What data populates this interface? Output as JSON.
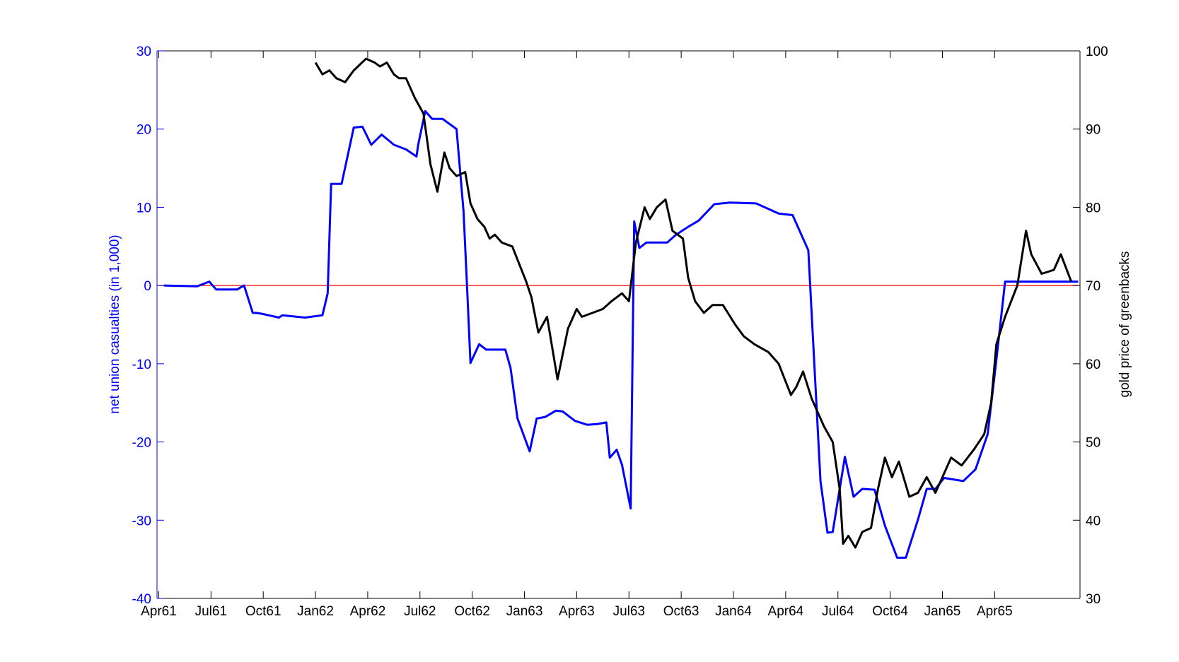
{
  "chart_data": {
    "type": "line",
    "x_tick_labels": [
      "Apr61",
      "Jul61",
      "Oct61",
      "Jan62",
      "Apr62",
      "Jul62",
      "Oct62",
      "Jan63",
      "Apr63",
      "Jul63",
      "Oct63",
      "Jan64",
      "Apr64",
      "Jul64",
      "Oct64",
      "Jan65",
      "Apr65"
    ],
    "x_tick_index": [
      0,
      3,
      6,
      9,
      12,
      15,
      18,
      21,
      24,
      27,
      30,
      33,
      36,
      39,
      42,
      45,
      48
    ],
    "xlim_index": [
      -0.1,
      52.9
    ],
    "y_left": {
      "label": "net union casualties (in 1,000)",
      "color": "#0000ff",
      "lim": [
        -40,
        30
      ],
      "ticks": [
        "30",
        "20",
        "10",
        "0",
        "-10",
        "-20",
        "-30",
        "-40"
      ]
    },
    "y_right": {
      "label": "gold price of greenbacks",
      "color": "#000000",
      "lim": [
        30,
        100
      ],
      "ticks": [
        "100",
        "90",
        "80",
        "70",
        "60",
        "50",
        "40",
        "30"
      ]
    },
    "zero_line": {
      "value": 0,
      "color": "#ff0000"
    },
    "series": [
      {
        "axis": "left",
        "color": "#0000ff",
        "x": [
          0.3,
          2.2,
          2.9,
          3.3,
          3.6,
          4.5,
          4.9,
          5.4,
          5.6,
          5.9,
          6.9,
          7.1,
          7.5,
          8.4,
          9.4,
          9.7,
          9.9,
          10.2,
          10.5,
          11.2,
          11.7,
          12.2,
          12.8,
          13.5,
          14.2,
          14.8,
          14.9,
          15.3,
          15.7,
          16.3,
          17.1,
          17.5,
          17.7,
          17.9,
          18.4,
          18.8,
          19.5,
          19.9,
          20.2,
          20.6,
          21.3,
          21.7,
          22.2,
          22.8,
          23.2,
          23.9,
          24.6,
          25.2,
          25.7,
          25.9,
          26.3,
          26.6,
          27.1,
          27.3,
          27.6,
          28.0,
          28.6,
          29.2,
          29.7,
          30.4,
          31.0,
          31.9,
          32.8,
          34.3,
          35.6,
          36.4,
          37.3,
          38.0,
          38.4,
          38.7,
          39.4,
          39.9,
          40.4,
          41.1,
          41.7,
          42.4,
          42.9,
          43.6,
          44.1,
          44.6,
          45.1,
          46.2,
          46.9,
          47.6,
          48.1,
          48.6,
          49.1,
          52.8
        ],
        "y": [
          0.0,
          -0.1,
          0.5,
          -0.5,
          -0.5,
          -0.5,
          0.0,
          -3.5,
          -3.5,
          -3.6,
          -4.1,
          -3.8,
          -3.9,
          -4.1,
          -3.8,
          -1.0,
          13.0,
          13.0,
          13.0,
          20.2,
          20.3,
          18.0,
          19.3,
          18.0,
          17.4,
          16.5,
          18.0,
          22.3,
          21.3,
          21.3,
          20.0,
          9.5,
          0.0,
          -9.9,
          -7.5,
          -8.2,
          -8.2,
          -8.2,
          -10.5,
          -17.0,
          -21.2,
          -17.0,
          -16.8,
          -16.0,
          -16.1,
          -17.3,
          -17.8,
          -17.7,
          -17.5,
          -22.0,
          -21.0,
          -22.9,
          -28.5,
          8.2,
          4.8,
          5.5,
          5.5,
          5.5,
          6.5,
          7.5,
          8.3,
          10.4,
          10.6,
          10.5,
          9.2,
          9.0,
          4.5,
          -25.0,
          -31.6,
          -31.5,
          -21.9,
          -27.0,
          -26.0,
          -26.1,
          -30.7,
          -34.8,
          -34.8,
          -29.9,
          -26.0,
          -26.0,
          -24.6,
          -25.0,
          -23.5,
          -19.0,
          -9.5,
          0.5,
          0.5,
          0.5
        ]
      },
      {
        "axis": "right",
        "color": "#000000",
        "x": [
          9.0,
          9.4,
          9.8,
          10.2,
          10.7,
          11.2,
          11.9,
          12.4,
          12.7,
          13.1,
          13.5,
          13.8,
          14.2,
          14.5,
          14.7,
          15.2,
          15.6,
          16.0,
          16.4,
          16.7,
          17.1,
          17.6,
          17.9,
          18.3,
          18.7,
          19.0,
          19.3,
          19.7,
          20.3,
          21.1,
          21.4,
          21.8,
          22.3,
          22.9,
          23.5,
          24.0,
          24.3,
          24.9,
          25.5,
          26.0,
          26.6,
          27.0,
          27.4,
          27.9,
          28.2,
          28.6,
          29.1,
          29.5,
          30.1,
          30.4,
          30.8,
          31.3,
          31.8,
          32.4,
          33.1,
          33.6,
          34.2,
          35.0,
          35.6,
          36.3,
          36.6,
          37.0,
          37.5,
          38.2,
          38.7,
          39.1,
          39.3,
          39.6,
          40.0,
          40.4,
          40.9,
          41.3,
          41.7,
          42.1,
          42.5,
          42.9,
          43.1,
          43.6,
          44.1,
          44.6,
          45.0,
          45.5,
          46.1,
          46.8,
          47.4,
          47.8,
          48.1,
          48.6,
          49.3,
          49.8,
          50.1,
          50.7,
          51.4,
          51.8,
          52.4
        ],
        "y": [
          98.5,
          97.0,
          97.5,
          96.5,
          96.0,
          97.5,
          99.0,
          98.5,
          98.0,
          98.5,
          97.0,
          96.5,
          96.5,
          95.0,
          94.0,
          92.0,
          85.5,
          82.0,
          87.0,
          85.0,
          84.0,
          84.5,
          80.5,
          78.5,
          77.5,
          76.0,
          76.5,
          75.5,
          75.0,
          70.5,
          68.5,
          64.0,
          66.0,
          58.0,
          64.5,
          67.0,
          66.0,
          66.5,
          67.0,
          68.0,
          69.0,
          68.0,
          75.5,
          80.0,
          78.5,
          80.0,
          81.0,
          77.0,
          76.0,
          71.0,
          68.0,
          66.5,
          67.5,
          67.5,
          65.0,
          63.5,
          62.5,
          61.5,
          60.0,
          56.0,
          57.0,
          59.0,
          55.5,
          52.0,
          50.0,
          44.0,
          37.0,
          38.0,
          36.5,
          38.5,
          39.0,
          44.0,
          48.0,
          45.5,
          47.5,
          44.5,
          43.0,
          43.5,
          45.5,
          43.5,
          45.5,
          48.0,
          47.0,
          49.0,
          51.0,
          55.0,
          62.5,
          66.0,
          70.0,
          77.0,
          74.0,
          71.5,
          72.0,
          74.0,
          70.5
        ]
      }
    ]
  }
}
